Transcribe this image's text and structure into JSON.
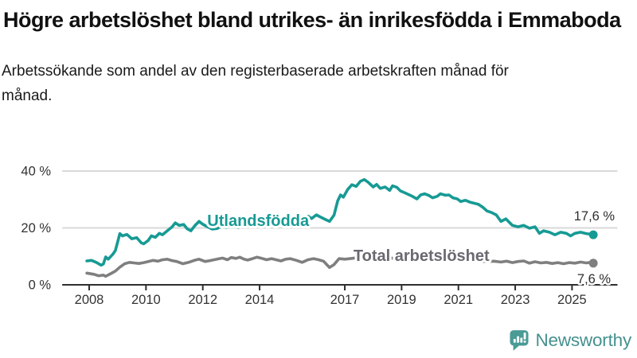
{
  "header": {
    "title": "Högre arbetslöshet bland utrikes- än inrikesfödda i Emmaboda",
    "subtitle": "Arbetssökande som andel av den registerbaserade arbetskraften månad för månad."
  },
  "footer": {
    "brand": "Newsworthy"
  },
  "colors": {
    "title_text": "#111111",
    "axis": "#2e2e2e",
    "grid": "#d9d9d9",
    "tick_text": "#333333",
    "teal": "#179a94",
    "gray_line": "#7f7f7f",
    "gray_label": "#696970",
    "brand_icon": "#4a9a96",
    "brand_text": "#45918e"
  },
  "chart_data": {
    "type": "line",
    "title": "Högre arbetslöshet bland utrikes- än inrikesfödda i Emmaboda",
    "subtitle": "Arbetssökande som andel av den registerbaserade arbetskraften månad för månad.",
    "unit": "%",
    "grid": "horizontal-only",
    "legend_position": "inline-labels-on-lines",
    "xlim": [
      2007.05,
      2026.6
    ],
    "ylim": [
      0,
      44
    ],
    "x_ticks": [
      2008,
      2010,
      2012,
      2014,
      2017,
      2019,
      2021,
      2023,
      2025
    ],
    "y_ticks": [
      {
        "value": 0,
        "label": "0 %"
      },
      {
        "value": 20,
        "label": "20 %"
      },
      {
        "value": 40,
        "label": "40 %"
      }
    ],
    "series": [
      {
        "name": "Utlandsfödda",
        "color": "#179a94",
        "end_value": 17.6,
        "end_value_label": "17,6 %",
        "label_pos": {
          "year": 2013.95,
          "pct": 22.7
        },
        "end_label_offset": {
          "dx": 27,
          "dy": -18
        },
        "points": [
          [
            2007.92,
            8.4
          ],
          [
            2008.08,
            8.6
          ],
          [
            2008.25,
            7.9
          ],
          [
            2008.42,
            6.9
          ],
          [
            2008.5,
            7.3
          ],
          [
            2008.58,
            9.8
          ],
          [
            2008.67,
            9.0
          ],
          [
            2008.83,
            10.7
          ],
          [
            2008.92,
            12.0
          ],
          [
            2009.0,
            15.0
          ],
          [
            2009.08,
            18.0
          ],
          [
            2009.17,
            17.2
          ],
          [
            2009.33,
            17.7
          ],
          [
            2009.5,
            16.2
          ],
          [
            2009.67,
            16.6
          ],
          [
            2009.83,
            14.8
          ],
          [
            2009.92,
            14.4
          ],
          [
            2010.08,
            15.6
          ],
          [
            2010.19,
            17.2
          ],
          [
            2010.33,
            16.7
          ],
          [
            2010.47,
            18.1
          ],
          [
            2010.58,
            17.6
          ],
          [
            2010.75,
            19.0
          ],
          [
            2010.92,
            20.4
          ],
          [
            2011.03,
            21.8
          ],
          [
            2011.17,
            20.9
          ],
          [
            2011.33,
            21.2
          ],
          [
            2011.45,
            19.7
          ],
          [
            2011.58,
            19.0
          ],
          [
            2011.73,
            20.9
          ],
          [
            2011.87,
            22.3
          ],
          [
            2012.0,
            21.3
          ],
          [
            2012.17,
            20.4
          ],
          [
            2012.33,
            19.6
          ],
          [
            2012.5,
            19.8
          ],
          [
            2012.67,
            20.6
          ],
          [
            2012.83,
            20.2
          ],
          [
            2013.0,
            20.8
          ],
          [
            2013.25,
            20.2
          ],
          [
            2013.5,
            21.0
          ],
          [
            2013.75,
            20.6
          ],
          [
            2014.0,
            21.4
          ],
          [
            2014.25,
            21.0
          ],
          [
            2014.5,
            21.7
          ],
          [
            2014.75,
            21.2
          ],
          [
            2015.0,
            21.9
          ],
          [
            2015.25,
            22.4
          ],
          [
            2015.5,
            23.2
          ],
          [
            2015.71,
            24.1
          ],
          [
            2015.83,
            23.3
          ],
          [
            2016.0,
            24.6
          ],
          [
            2016.17,
            23.7
          ],
          [
            2016.33,
            22.9
          ],
          [
            2016.46,
            22.3
          ],
          [
            2016.62,
            24.5
          ],
          [
            2016.75,
            29.5
          ],
          [
            2016.85,
            31.6
          ],
          [
            2016.95,
            30.8
          ],
          [
            2017.1,
            33.5
          ],
          [
            2017.25,
            35.2
          ],
          [
            2017.4,
            34.6
          ],
          [
            2017.55,
            36.4
          ],
          [
            2017.69,
            37.0
          ],
          [
            2017.83,
            36.0
          ],
          [
            2018.0,
            34.4
          ],
          [
            2018.12,
            35.3
          ],
          [
            2018.25,
            33.9
          ],
          [
            2018.42,
            34.4
          ],
          [
            2018.58,
            33.2
          ],
          [
            2018.68,
            34.8
          ],
          [
            2018.83,
            34.3
          ],
          [
            2018.96,
            33.0
          ],
          [
            2019.12,
            32.3
          ],
          [
            2019.38,
            31.1
          ],
          [
            2019.54,
            30.2
          ],
          [
            2019.67,
            31.6
          ],
          [
            2019.81,
            32.0
          ],
          [
            2019.96,
            31.4
          ],
          [
            2020.09,
            30.6
          ],
          [
            2020.25,
            31.1
          ],
          [
            2020.37,
            32.0
          ],
          [
            2020.54,
            31.5
          ],
          [
            2020.67,
            31.6
          ],
          [
            2020.8,
            30.6
          ],
          [
            2020.96,
            30.2
          ],
          [
            2021.08,
            29.3
          ],
          [
            2021.25,
            29.7
          ],
          [
            2021.42,
            29.0
          ],
          [
            2021.7,
            28.3
          ],
          [
            2021.87,
            27.2
          ],
          [
            2022.0,
            26.0
          ],
          [
            2022.17,
            25.4
          ],
          [
            2022.33,
            24.6
          ],
          [
            2022.5,
            22.3
          ],
          [
            2022.67,
            23.2
          ],
          [
            2022.9,
            20.9
          ],
          [
            2023.1,
            20.4
          ],
          [
            2023.3,
            20.9
          ],
          [
            2023.5,
            19.9
          ],
          [
            2023.7,
            20.4
          ],
          [
            2023.85,
            18.1
          ],
          [
            2024.0,
            19.0
          ],
          [
            2024.2,
            18.5
          ],
          [
            2024.4,
            17.6
          ],
          [
            2024.6,
            18.5
          ],
          [
            2024.8,
            18.1
          ],
          [
            2024.95,
            17.2
          ],
          [
            2025.1,
            18.1
          ],
          [
            2025.3,
            18.5
          ],
          [
            2025.5,
            18.0
          ],
          [
            2025.65,
            17.8
          ],
          [
            2025.75,
            17.6
          ]
        ]
      },
      {
        "name": "Total arbetslöshet",
        "color": "#7f7f7f",
        "label_color": "#696970",
        "end_value": 7.6,
        "end_value_label": "7,6 %",
        "label_pos": {
          "year": 2019.7,
          "pct": 10.3
        },
        "end_label_offset": {
          "dx": 22,
          "dy": 25
        },
        "points": [
          [
            2007.92,
            4.1
          ],
          [
            2008.17,
            3.7
          ],
          [
            2008.33,
            3.2
          ],
          [
            2008.5,
            3.4
          ],
          [
            2008.58,
            3.0
          ],
          [
            2008.75,
            3.9
          ],
          [
            2008.92,
            4.8
          ],
          [
            2009.08,
            6.2
          ],
          [
            2009.25,
            7.4
          ],
          [
            2009.42,
            7.9
          ],
          [
            2009.58,
            7.7
          ],
          [
            2009.75,
            7.5
          ],
          [
            2009.92,
            7.8
          ],
          [
            2010.08,
            8.2
          ],
          [
            2010.25,
            8.6
          ],
          [
            2010.42,
            8.3
          ],
          [
            2010.58,
            8.8
          ],
          [
            2010.75,
            9.0
          ],
          [
            2010.92,
            8.5
          ],
          [
            2011.08,
            8.2
          ],
          [
            2011.3,
            7.4
          ],
          [
            2011.5,
            7.9
          ],
          [
            2011.7,
            8.6
          ],
          [
            2011.87,
            9.0
          ],
          [
            2012.08,
            8.2
          ],
          [
            2012.25,
            8.5
          ],
          [
            2012.4,
            8.8
          ],
          [
            2012.58,
            9.2
          ],
          [
            2012.7,
            9.4
          ],
          [
            2012.87,
            8.8
          ],
          [
            2013.0,
            9.6
          ],
          [
            2013.17,
            9.3
          ],
          [
            2013.3,
            9.7
          ],
          [
            2013.45,
            9.0
          ],
          [
            2013.58,
            8.7
          ],
          [
            2013.75,
            9.2
          ],
          [
            2013.9,
            9.7
          ],
          [
            2014.08,
            9.3
          ],
          [
            2014.25,
            8.8
          ],
          [
            2014.42,
            9.2
          ],
          [
            2014.58,
            8.8
          ],
          [
            2014.75,
            8.4
          ],
          [
            2014.92,
            9.0
          ],
          [
            2015.08,
            9.2
          ],
          [
            2015.3,
            8.6
          ],
          [
            2015.5,
            7.9
          ],
          [
            2015.7,
            8.8
          ],
          [
            2015.9,
            9.2
          ],
          [
            2016.08,
            8.8
          ],
          [
            2016.25,
            8.3
          ],
          [
            2016.46,
            6.1
          ],
          [
            2016.62,
            7.1
          ],
          [
            2016.8,
            9.2
          ],
          [
            2017.0,
            9.0
          ],
          [
            2017.25,
            9.3
          ],
          [
            2017.5,
            9.6
          ],
          [
            2017.75,
            9.2
          ],
          [
            2018.0,
            8.9
          ],
          [
            2018.25,
            9.4
          ],
          [
            2018.5,
            9.7
          ],
          [
            2018.75,
            9.2
          ],
          [
            2019.0,
            9.0
          ],
          [
            2019.25,
            9.5
          ],
          [
            2019.5,
            9.2
          ],
          [
            2019.75,
            9.0
          ],
          [
            2020.0,
            9.4
          ],
          [
            2020.25,
            9.9
          ],
          [
            2020.5,
            9.6
          ],
          [
            2020.75,
            9.3
          ],
          [
            2021.0,
            9.1
          ],
          [
            2021.25,
            8.8
          ],
          [
            2021.5,
            8.6
          ],
          [
            2021.75,
            8.4
          ],
          [
            2022.0,
            8.1
          ],
          [
            2022.25,
            8.3
          ],
          [
            2022.5,
            8.0
          ],
          [
            2022.7,
            8.3
          ],
          [
            2022.9,
            7.8
          ],
          [
            2023.1,
            8.2
          ],
          [
            2023.3,
            8.4
          ],
          [
            2023.5,
            7.6
          ],
          [
            2023.7,
            8.1
          ],
          [
            2023.9,
            7.7
          ],
          [
            2024.1,
            7.9
          ],
          [
            2024.3,
            7.5
          ],
          [
            2024.5,
            7.8
          ],
          [
            2024.7,
            7.4
          ],
          [
            2024.9,
            7.8
          ],
          [
            2025.1,
            7.6
          ],
          [
            2025.3,
            8.0
          ],
          [
            2025.5,
            7.7
          ],
          [
            2025.65,
            7.9
          ],
          [
            2025.75,
            7.6
          ]
        ]
      }
    ]
  }
}
